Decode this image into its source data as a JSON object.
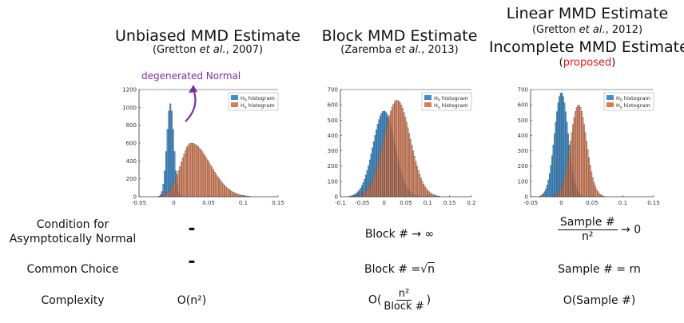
{
  "columns": [
    {
      "title": "Unbiased MMD Estimate",
      "cite_pre": "(Gretton ",
      "cite_em": "et al.",
      "cite_post": ", 2007)"
    },
    {
      "title": "Block MMD Estimate",
      "cite_pre": "(Zaremba ",
      "cite_em": "et al.",
      "cite_post": ", 2013)"
    },
    {
      "title_top": "Linear MMD Estimate",
      "cite_pre": "(Gretton ",
      "cite_em": "et al.",
      "cite_post": ", 2012)",
      "title": "Incomplete MMD Estimate",
      "proposed_open": "(",
      "proposed": "proposed",
      "proposed_close": ")"
    }
  ],
  "annotation": "degenerated Normal",
  "rows": {
    "condition_label_1": "Condition for",
    "condition_label_2": "Asymptotically Normal",
    "choice_label": "Common Choice",
    "complexity_label": "Complexity",
    "dash": "-",
    "block_condition": "Block # → ∞",
    "incomplete_cond_num": "Sample #",
    "incomplete_cond_den": "n²",
    "incomplete_cond_tail": "→ 0",
    "block_choice_pre": "Block # =",
    "block_choice_sqrt": "√",
    "block_choice_n": "n",
    "incomplete_choice": "Sample # = rn",
    "unbiased_complexity": "O(n²)",
    "block_complexity_open": "O(",
    "block_complexity_num": "n²",
    "block_complexity_den": "Block #",
    "block_complexity_close": ")",
    "incomplete_complexity": "O(Sample #)"
  },
  "colors": {
    "h0": "#3f8fcf",
    "ha": "#e07a50",
    "purple": "#7b2fa8",
    "red": "#e8141b"
  },
  "chart_data": [
    {
      "type": "bar",
      "title": "Unbiased MMD Estimate",
      "xlim": [
        -0.05,
        0.15
      ],
      "ylim": [
        0,
        1200
      ],
      "xticks": [
        -0.05,
        0,
        0.05,
        0.1,
        0.15
      ],
      "xticklabels": [
        "-0.05",
        "0",
        "0.05",
        "0.1",
        "0.15"
      ],
      "yticks": [
        0,
        200,
        400,
        600,
        800,
        1000,
        1200
      ],
      "yticklabels": [
        "0",
        "200",
        "400",
        "600",
        "800",
        "1000",
        "1200"
      ],
      "legend": [
        "H₀ histogram",
        "Hₐ histogram"
      ],
      "legend_h0_main": "H",
      "legend_h0_sub": "0",
      "legend_ha_main": "H",
      "legend_ha_sub": "a",
      "legend_suffix": " histogram",
      "series": [
        {
          "name": "H0",
          "mean": -0.005,
          "sd": 0.005,
          "peak": 1040
        },
        {
          "name": "Ha",
          "mean": 0.025,
          "sd": 0.015,
          "peak": 600,
          "skew": true
        }
      ]
    },
    {
      "type": "bar",
      "title": "Block MMD Estimate",
      "xlim": [
        -0.1,
        0.2
      ],
      "ylim": [
        0,
        700
      ],
      "xticks": [
        -0.1,
        -0.05,
        0,
        0.05,
        0.1,
        0.15,
        0.2
      ],
      "xticklabels": [
        "-0.1",
        "-0.05",
        "0",
        "0.05",
        "0.1",
        "0.15",
        "0.2"
      ],
      "yticks": [
        0,
        100,
        200,
        300,
        400,
        500,
        600,
        700
      ],
      "yticklabels": [
        "0",
        "100",
        "200",
        "300",
        "400",
        "500",
        "600",
        "700"
      ],
      "legend": [
        "H₀ histogram",
        "Hₐ histogram"
      ],
      "legend_h0_main": "H",
      "legend_h0_sub": "0",
      "legend_ha_main": "H",
      "legend_ha_sub": "a",
      "legend_suffix": " histogram",
      "series": [
        {
          "name": "H0",
          "mean": 0.0,
          "sd": 0.025,
          "peak": 560
        },
        {
          "name": "Ha",
          "mean": 0.03,
          "sd": 0.03,
          "peak": 630
        }
      ]
    },
    {
      "type": "bar",
      "title": "Incomplete MMD Estimate",
      "xlim": [
        -0.05,
        0.15
      ],
      "ylim": [
        0,
        700
      ],
      "xticks": [
        -0.05,
        0,
        0.05,
        0.1,
        0.15
      ],
      "xticklabels": [
        "-0.05",
        "0",
        "0.05",
        "0.1",
        "0.15"
      ],
      "yticks": [
        0,
        100,
        200,
        300,
        400,
        500,
        600,
        700
      ],
      "yticklabels": [
        "0",
        "100",
        "200",
        "300",
        "400",
        "500",
        "600",
        "700"
      ],
      "legend": [
        "H₀ histogram",
        "Hₐ histogram"
      ],
      "legend_h0_main": "H",
      "legend_h0_sub": "0",
      "legend_ha_main": "H",
      "legend_ha_sub": "a",
      "legend_suffix": " histogram",
      "series": [
        {
          "name": "H0",
          "mean": 0.0,
          "sd": 0.011,
          "peak": 680
        },
        {
          "name": "Ha",
          "mean": 0.028,
          "sd": 0.013,
          "peak": 600
        }
      ]
    }
  ]
}
